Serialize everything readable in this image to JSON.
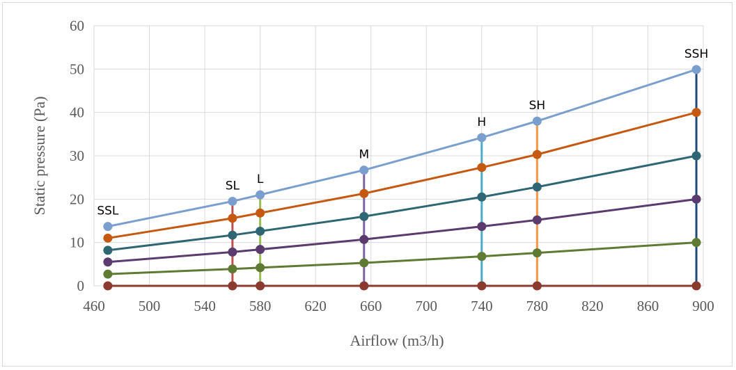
{
  "chart_data": {
    "type": "line",
    "title": "",
    "xlabel": "Airflow (m3/h)",
    "ylabel": "Static pressure (Pa)",
    "xlim": [
      460,
      900
    ],
    "ylim": [
      0,
      60
    ],
    "xticks": [
      460,
      500,
      540,
      580,
      620,
      660,
      700,
      740,
      780,
      820,
      860,
      900
    ],
    "yticks": [
      0,
      10,
      20,
      30,
      40,
      50,
      60
    ],
    "grid": true,
    "legend": "none",
    "x": [
      470,
      560,
      580,
      655,
      740,
      780,
      895
    ],
    "point_labels": [
      "SSL",
      "SL",
      "L",
      "M",
      "H",
      "SH",
      "SSH"
    ],
    "series": [
      {
        "values": [
          13.7,
          19.5,
          21.0,
          26.7,
          34.2,
          38.0,
          49.9
        ],
        "color": "#7a9fcf"
      },
      {
        "values": [
          11.0,
          15.6,
          16.8,
          21.3,
          27.3,
          30.3,
          40.0
        ],
        "color": "#c65911"
      },
      {
        "values": [
          8.2,
          11.7,
          12.6,
          16.0,
          20.5,
          22.8,
          30.0
        ],
        "color": "#2e6773"
      },
      {
        "values": [
          5.5,
          7.8,
          8.4,
          10.7,
          13.7,
          15.2,
          20.0
        ],
        "color": "#5b3a6e"
      },
      {
        "values": [
          2.7,
          3.9,
          4.2,
          5.3,
          6.8,
          7.6,
          10.0
        ],
        "color": "#5f7a33"
      },
      {
        "values": [
          0,
          0,
          0,
          0,
          0,
          0,
          0
        ],
        "color": "#8b3a2f"
      }
    ],
    "verticals": [
      {
        "x": 560,
        "top": 19.5,
        "color": "#c0504d"
      },
      {
        "x": 580,
        "top": 21.0,
        "color": "#9bbb59"
      },
      {
        "x": 655,
        "top": 26.7,
        "color": "#8064a2"
      },
      {
        "x": 740,
        "top": 34.2,
        "color": "#4bacc6"
      },
      {
        "x": 780,
        "top": 38.0,
        "color": "#f79646"
      },
      {
        "x": 895,
        "top": 49.9,
        "color": "#1f497d"
      }
    ]
  }
}
